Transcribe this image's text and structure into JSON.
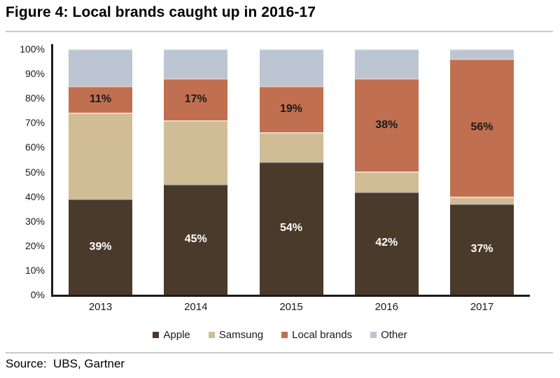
{
  "figure": {
    "title": "Figure 4: Local brands caught up in 2016-17",
    "source": "Source:  UBS, Gartner"
  },
  "colors": {
    "axis": "#1a1a1a",
    "separator": "#c9c9c9",
    "title_text": "#000000"
  },
  "chart_data": {
    "type": "bar",
    "stacked": true,
    "units": "percent",
    "title": "Figure 4: Local brands caught up in 2016-17",
    "categories": [
      "2013",
      "2014",
      "2015",
      "2016",
      "2017"
    ],
    "series": [
      {
        "name": "Apple",
        "color": "#493a2b",
        "label_color": "#ffffff",
        "values": [
          39,
          45,
          54,
          42,
          37
        ],
        "labels": [
          "39%",
          "45%",
          "54%",
          "42%",
          "37%"
        ]
      },
      {
        "name": "Samsung",
        "color": "#d0bd96",
        "label_color": "#1a1a1a",
        "values": [
          35,
          26,
          12,
          8,
          3
        ],
        "labels": []
      },
      {
        "name": "Local brands",
        "color": "#c06f50",
        "label_color": "#1a1a1a",
        "values": [
          11,
          17,
          19,
          38,
          56
        ],
        "labels": [
          "11%",
          "17%",
          "19%",
          "38%",
          "56%"
        ]
      },
      {
        "name": "Other",
        "color": "#bdc5d3",
        "label_color": "#1a1a1a",
        "values": [
          15,
          12,
          15,
          12,
          4
        ],
        "labels": []
      }
    ],
    "ylim": [
      0,
      100
    ],
    "yticks": [
      "100%",
      "90%",
      "80%",
      "70%",
      "60%",
      "50%",
      "40%",
      "30%",
      "20%",
      "10%",
      "0%"
    ],
    "grid": false,
    "legend_position": "bottom"
  }
}
